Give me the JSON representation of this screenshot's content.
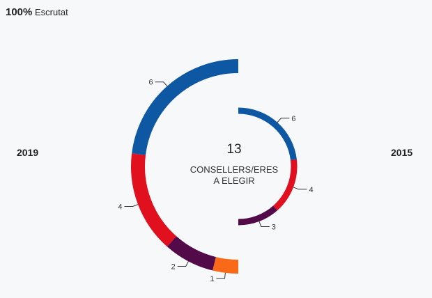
{
  "header": {
    "scrutiny_pct": "100%",
    "scrutiny_label": "Escrutat"
  },
  "center": {
    "total": "13",
    "label_line1": "CONSELLERS/ERES",
    "label_line2": "A ELEGIR"
  },
  "chart_data": [
    {
      "type": "pie",
      "name": "2019",
      "ring": "outer",
      "total": 13,
      "slices": [
        {
          "value": 6,
          "color": "#0e58a3"
        },
        {
          "value": 4,
          "color": "#e0101f"
        },
        {
          "value": 2,
          "color": "#520a48"
        },
        {
          "value": 1,
          "color": "#f86a18"
        }
      ]
    },
    {
      "type": "pie",
      "name": "2015",
      "ring": "inner",
      "total": 13,
      "slices": [
        {
          "value": 6,
          "color": "#0e58a3"
        },
        {
          "value": 4,
          "color": "#e0101f"
        },
        {
          "value": 3,
          "color": "#520a48"
        }
      ]
    }
  ]
}
